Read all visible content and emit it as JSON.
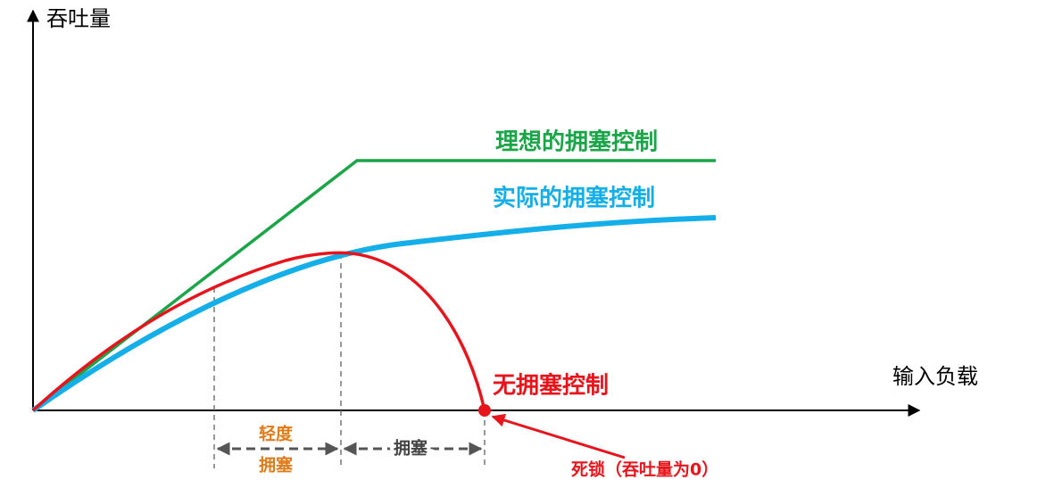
{
  "axes": {
    "y_label": "吞吐量",
    "x_label": "输入负载"
  },
  "curves": [
    {
      "label": "理想的拥塞控制"
    },
    {
      "label": "实际的拥塞控制"
    },
    {
      "label": "无拥塞控制"
    }
  ],
  "regions": [
    {
      "label_lines": [
        "轻度",
        "拥塞"
      ]
    },
    {
      "label": "拥塞"
    }
  ],
  "callout": {
    "label": "死锁（吞吐量为0）"
  }
}
